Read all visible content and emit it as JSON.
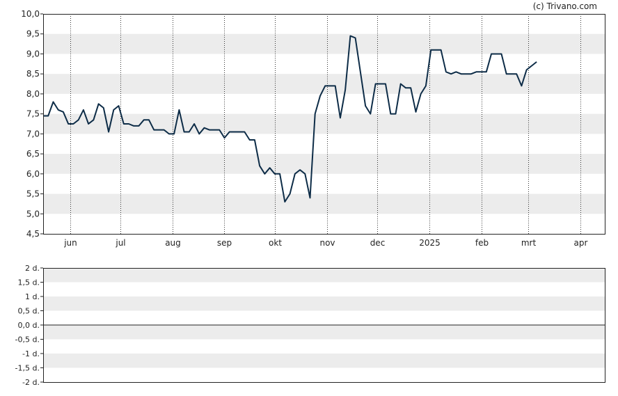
{
  "watermark": "(c) Trivano.com",
  "chart_data": [
    {
      "type": "line",
      "title": "",
      "xlabel": "",
      "ylabel": "",
      "ylim": [
        4.5,
        10.0
      ],
      "y_ticks": [
        {
          "v": 4.5,
          "label": "4,5"
        },
        {
          "v": 5.0,
          "label": "5,0"
        },
        {
          "v": 5.5,
          "label": "5,5"
        },
        {
          "v": 6.0,
          "label": "6,0"
        },
        {
          "v": 6.5,
          "label": "6,5"
        },
        {
          "v": 7.0,
          "label": "7,0"
        },
        {
          "v": 7.5,
          "label": "7,5"
        },
        {
          "v": 8.0,
          "label": "8,0"
        },
        {
          "v": 8.5,
          "label": "8,5"
        },
        {
          "v": 9.0,
          "label": "9,0"
        },
        {
          "v": 9.5,
          "label": "9,5"
        },
        {
          "v": 10.0,
          "label": "10,0"
        }
      ],
      "x_domain": [
        "2024-05-16",
        "2025-04-16"
      ],
      "x_ticks": [
        {
          "date": "2024-06-01",
          "label": "jun"
        },
        {
          "date": "2024-07-01",
          "label": "jul"
        },
        {
          "date": "2024-08-01",
          "label": "aug"
        },
        {
          "date": "2024-09-01",
          "label": "sep"
        },
        {
          "date": "2024-10-01",
          "label": "okt"
        },
        {
          "date": "2024-11-01",
          "label": "nov"
        },
        {
          "date": "2024-12-01",
          "label": "dec"
        },
        {
          "date": "2025-01-01",
          "label": "2025"
        },
        {
          "date": "2025-02-01",
          "label": "feb"
        },
        {
          "date": "2025-03-01",
          "label": "mrt"
        },
        {
          "date": "2025-04-01",
          "label": "apr"
        }
      ],
      "grid": "alternating horizontal bands, dotted vertical lines at month starts",
      "line_color": "#0d2c47",
      "series": [
        {
          "points": [
            [
              "2024-05-16",
              7.45
            ],
            [
              "2024-05-19",
              7.45
            ],
            [
              "2024-05-22",
              7.8
            ],
            [
              "2024-05-25",
              7.6
            ],
            [
              "2024-05-28",
              7.55
            ],
            [
              "2024-05-31",
              7.25
            ],
            [
              "2024-06-03",
              7.25
            ],
            [
              "2024-06-06",
              7.35
            ],
            [
              "2024-06-09",
              7.6
            ],
            [
              "2024-06-12",
              7.25
            ],
            [
              "2024-06-15",
              7.35
            ],
            [
              "2024-06-18",
              7.75
            ],
            [
              "2024-06-21",
              7.65
            ],
            [
              "2024-06-24",
              7.05
            ],
            [
              "2024-06-27",
              7.6
            ],
            [
              "2024-06-30",
              7.7
            ],
            [
              "2024-07-03",
              7.25
            ],
            [
              "2024-07-06",
              7.25
            ],
            [
              "2024-07-09",
              7.2
            ],
            [
              "2024-07-12",
              7.2
            ],
            [
              "2024-07-15",
              7.35
            ],
            [
              "2024-07-18",
              7.35
            ],
            [
              "2024-07-21",
              7.1
            ],
            [
              "2024-07-27",
              7.1
            ],
            [
              "2024-07-30",
              7.0
            ],
            [
              "2024-08-02",
              7.0
            ],
            [
              "2024-08-05",
              7.6
            ],
            [
              "2024-08-08",
              7.05
            ],
            [
              "2024-08-11",
              7.05
            ],
            [
              "2024-08-14",
              7.25
            ],
            [
              "2024-08-17",
              7.0
            ],
            [
              "2024-08-20",
              7.15
            ],
            [
              "2024-08-23",
              7.1
            ],
            [
              "2024-08-29",
              7.1
            ],
            [
              "2024-09-01",
              6.9
            ],
            [
              "2024-09-04",
              7.05
            ],
            [
              "2024-09-13",
              7.05
            ],
            [
              "2024-09-16",
              6.85
            ],
            [
              "2024-09-19",
              6.85
            ],
            [
              "2024-09-22",
              6.2
            ],
            [
              "2024-09-25",
              6.0
            ],
            [
              "2024-09-28",
              6.15
            ],
            [
              "2024-10-01",
              6.0
            ],
            [
              "2024-10-04",
              6.0
            ],
            [
              "2024-10-07",
              5.3
            ],
            [
              "2024-10-10",
              5.5
            ],
            [
              "2024-10-13",
              6.0
            ],
            [
              "2024-10-16",
              6.1
            ],
            [
              "2024-10-19",
              6.0
            ],
            [
              "2024-10-22",
              5.4
            ],
            [
              "2024-10-25",
              7.5
            ],
            [
              "2024-10-28",
              7.95
            ],
            [
              "2024-10-31",
              8.2
            ],
            [
              "2024-11-06",
              8.2
            ],
            [
              "2024-11-09",
              7.4
            ],
            [
              "2024-11-12",
              8.1
            ],
            [
              "2024-11-15",
              9.45
            ],
            [
              "2024-11-18",
              9.4
            ],
            [
              "2024-11-24",
              7.7
            ],
            [
              "2024-11-27",
              7.5
            ],
            [
              "2024-11-30",
              8.25
            ],
            [
              "2024-12-06",
              8.25
            ],
            [
              "2024-12-09",
              7.5
            ],
            [
              "2024-12-12",
              7.5
            ],
            [
              "2024-12-15",
              8.25
            ],
            [
              "2024-12-18",
              8.15
            ],
            [
              "2024-12-21",
              8.15
            ],
            [
              "2024-12-24",
              7.55
            ],
            [
              "2024-12-27",
              8.0
            ],
            [
              "2024-12-30",
              8.2
            ],
            [
              "2025-01-02",
              9.1
            ],
            [
              "2025-01-08",
              9.1
            ],
            [
              "2025-01-11",
              8.55
            ],
            [
              "2025-01-14",
              8.5
            ],
            [
              "2025-01-17",
              8.55
            ],
            [
              "2025-01-20",
              8.5
            ],
            [
              "2025-01-26",
              8.5
            ],
            [
              "2025-01-29",
              8.55
            ],
            [
              "2025-02-04",
              8.55
            ],
            [
              "2025-02-07",
              9.0
            ],
            [
              "2025-02-13",
              9.0
            ],
            [
              "2025-02-16",
              8.5
            ],
            [
              "2025-02-22",
              8.5
            ],
            [
              "2025-02-25",
              8.2
            ],
            [
              "2025-02-28",
              8.6
            ],
            [
              "2025-03-06",
              8.8
            ]
          ]
        }
      ]
    },
    {
      "type": "bar",
      "title": "",
      "ylim": [
        -2,
        2
      ],
      "y_ticks": [
        {
          "v": 2,
          "label": "2 d."
        },
        {
          "v": 1.5,
          "label": "1,5 d."
        },
        {
          "v": 1,
          "label": "1 d."
        },
        {
          "v": 0.5,
          "label": "0,5 d."
        },
        {
          "v": 0,
          "label": "0,0 d."
        },
        {
          "v": -0.5,
          "label": "-0,5 d."
        },
        {
          "v": -1,
          "label": "-1 d."
        },
        {
          "v": -1.5,
          "label": "-1,5 d."
        },
        {
          "v": -2,
          "label": "-2 d."
        }
      ],
      "values": []
    }
  ]
}
